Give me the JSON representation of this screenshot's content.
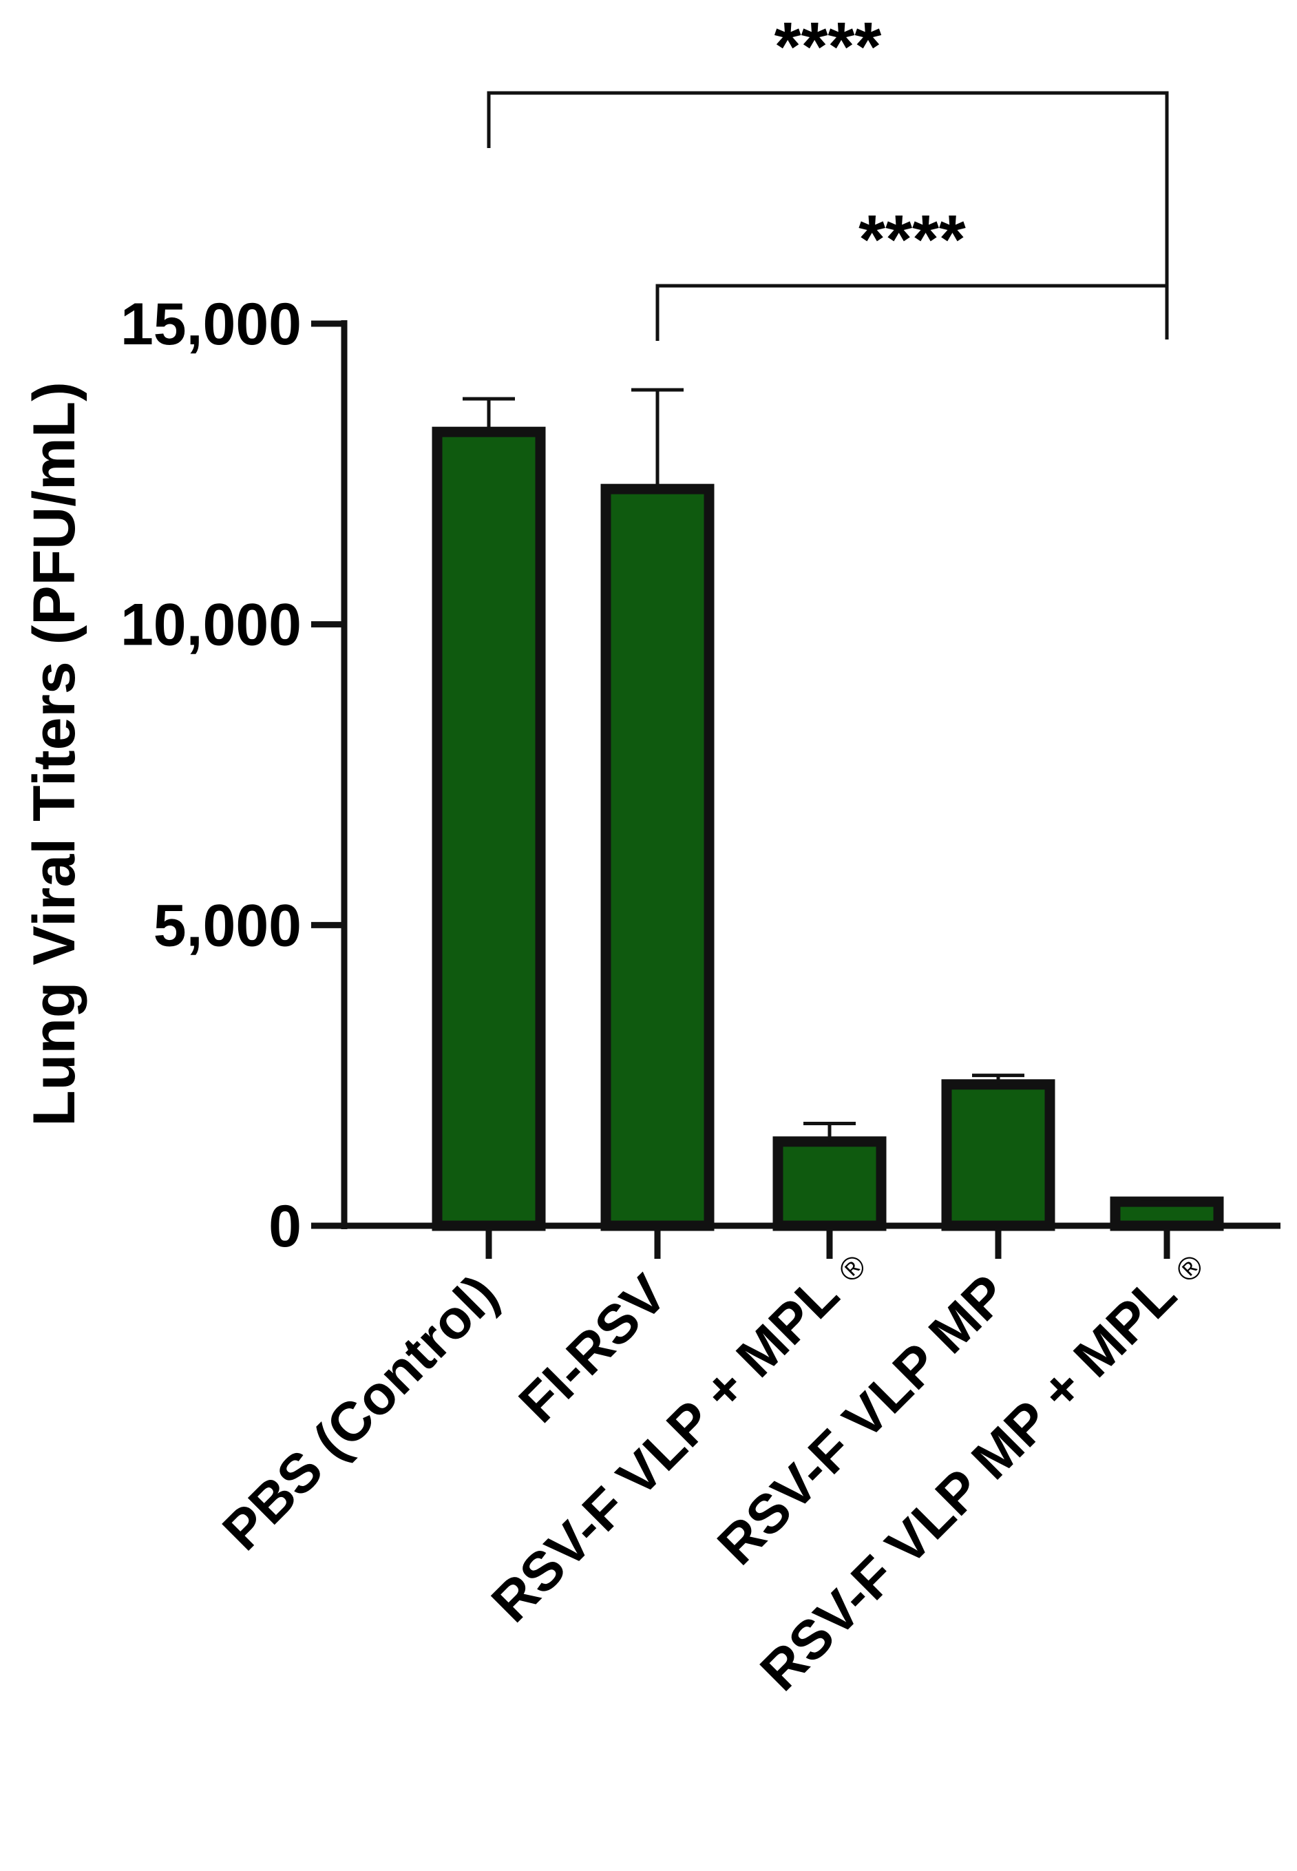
{
  "chart_data": {
    "type": "bar",
    "title": "",
    "xlabel": "",
    "ylabel": "Lung Viral Titers (PFU/mL)",
    "ylim": [
      0,
      15000
    ],
    "yticks": [
      0,
      5000,
      10000,
      15000
    ],
    "ytick_labels": [
      "0",
      "5,000",
      "10,000",
      "15,000"
    ],
    "grid": false,
    "legend": "none",
    "bar_color": "#0f5a0f",
    "edge_color": "#111111",
    "categories": [
      {
        "label": "PBS (Control)",
        "registered": false
      },
      {
        "label": "FI-RSV",
        "registered": false
      },
      {
        "label": "RSV-F VLP + MPL",
        "registered": true
      },
      {
        "label": "RSV-F VLP MP",
        "registered": false
      },
      {
        "label": "RSV-F VLP MP + MPL",
        "registered": true
      }
    ],
    "values": [
      13200,
      12250,
      1400,
      2350,
      400
    ],
    "errors": [
      550,
      1650,
      300,
      150,
      50
    ],
    "registered_mark": "®",
    "annotations": [
      {
        "label": "****",
        "from": 0,
        "to": 4
      },
      {
        "label": "****",
        "from": 1,
        "to": 4
      }
    ]
  }
}
